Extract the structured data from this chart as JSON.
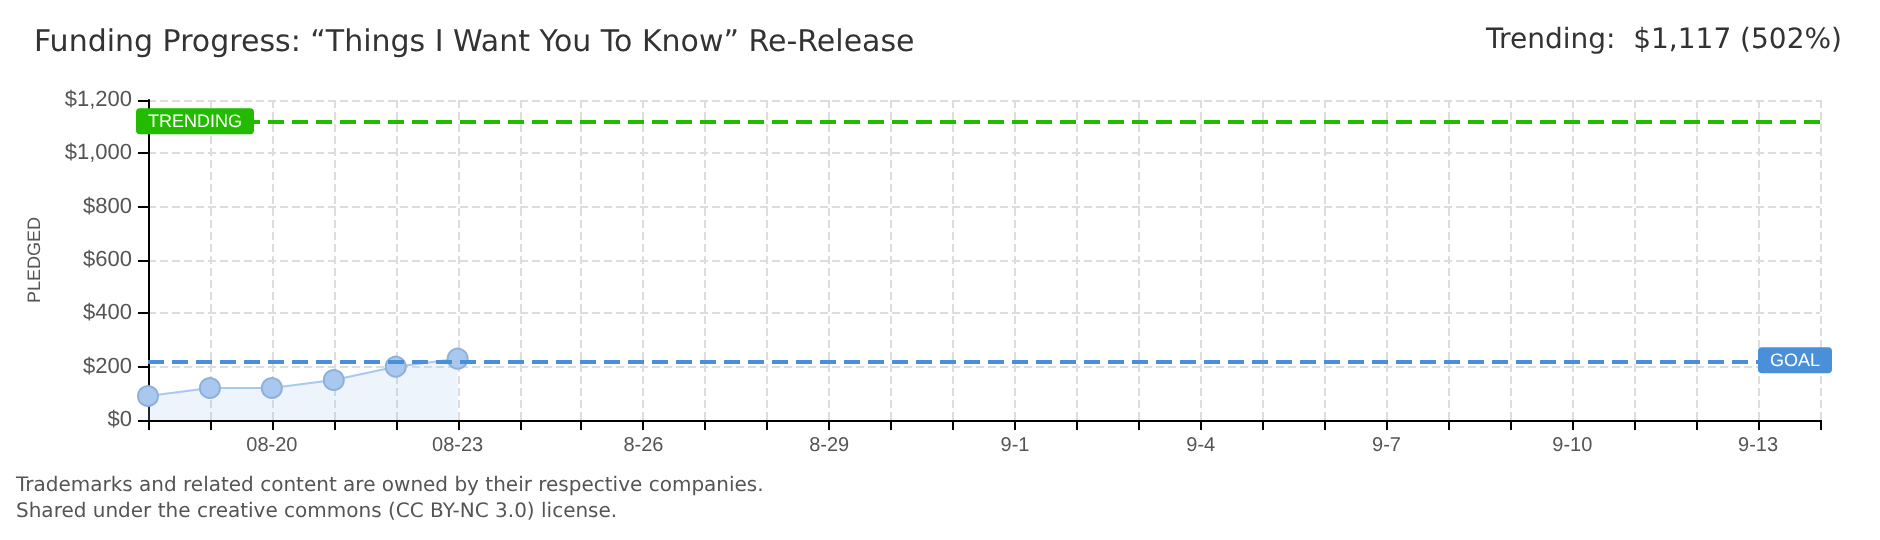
{
  "chart_data": {
    "type": "area",
    "title": "Funding Progress: “Things I Want You To Know” Re-Release",
    "ylabel": "PLEDGED",
    "categories": [
      null,
      null,
      "08-20",
      null,
      null,
      "08-23",
      null,
      null,
      "8-26",
      null,
      null,
      "8-29",
      null,
      null,
      "9-1",
      null,
      null,
      "9-4",
      null,
      null,
      "9-7",
      null,
      null,
      "9-10",
      null,
      null,
      "9-13",
      null
    ],
    "series": [
      {
        "color": "#a8c8f0",
        "values": [
          90,
          120,
          120,
          150,
          200,
          230,
          null,
          null,
          null,
          null,
          null,
          null,
          null,
          null,
          null,
          null,
          null,
          null,
          null,
          null,
          null,
          null,
          null,
          null,
          null,
          null,
          null,
          null
        ]
      }
    ],
    "ylim": [
      0,
      1200
    ],
    "yticks": [
      {
        "value": 0,
        "label": "$0"
      },
      {
        "value": 200,
        "label": "$200"
      },
      {
        "value": 400,
        "label": "$400"
      },
      {
        "value": 600,
        "label": "$600"
      },
      {
        "value": 800,
        "label": "$800"
      },
      {
        "value": 1000,
        "label": "$1,000"
      },
      {
        "value": 1200,
        "label": "$1,200"
      }
    ],
    "ref_lines": [
      {
        "axis": "y",
        "value": 1117,
        "label": "TRENDING",
        "color": "#22bb00",
        "line_style": "dashed"
      },
      {
        "axis": "y",
        "value": 220,
        "label": "GOAL",
        "color": "#4a90d9",
        "line_style": "dashed"
      }
    ],
    "annotations": [
      "Trending:  $1,117 (502%)",
      "Trademarks and related content are owned by their respective companies.",
      "Shared under the creative commons (CC BY-NC 3.0) license."
    ],
    "grid": true,
    "marker": "circle"
  }
}
